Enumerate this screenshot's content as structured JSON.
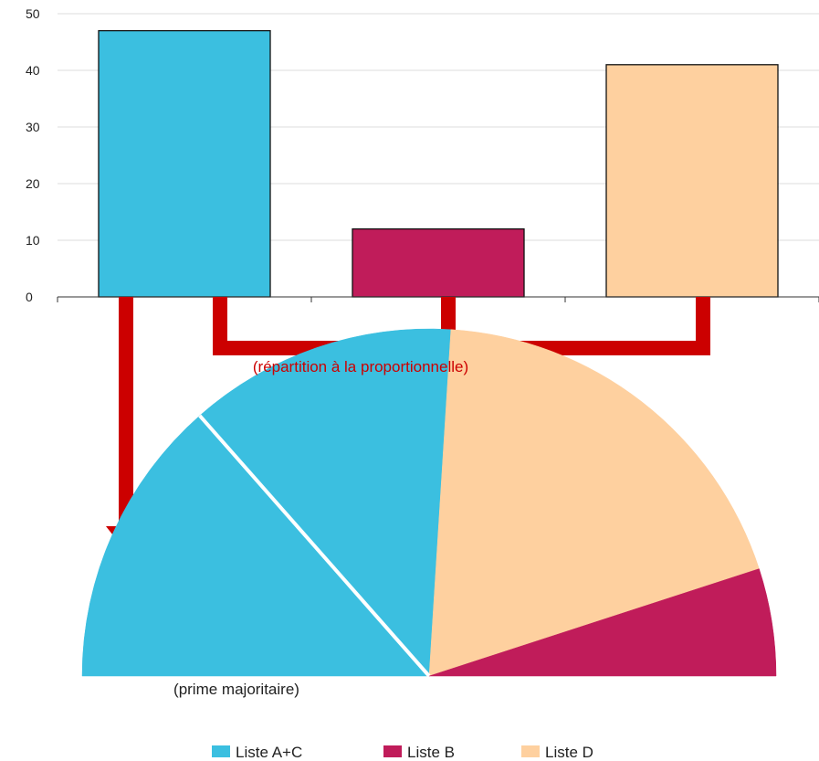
{
  "chart_data": {
    "type": "bar",
    "categories": [
      "Liste A+C",
      "Liste B",
      "Liste D"
    ],
    "values": [
      47,
      12,
      41
    ],
    "ylim": [
      0,
      50
    ],
    "yticks": [
      0,
      10,
      20,
      30,
      40,
      50
    ],
    "grid": true,
    "colors": [
      "#3bbfe0",
      "#c01c5a",
      "#fed09f"
    ],
    "seat_chart": {
      "type": "pie",
      "shape": "half-donut",
      "slices": [
        {
          "label": "Liste A+C",
          "value": 27,
          "color": "#3bbfe0",
          "note": "(prime majoritaire)"
        },
        {
          "label": "Liste A+C",
          "value": 25,
          "color": "#3bbfe0"
        },
        {
          "label": "Liste D",
          "value": 38,
          "color": "#fed09f"
        },
        {
          "label": "Liste B",
          "value": 10,
          "color": "#c01c5a"
        }
      ]
    },
    "annotations": {
      "proportional": "(répartition à la proportionnelle)",
      "bonus": "(prime majoritaire)"
    },
    "arrow_color": "#cc0000",
    "legend": {
      "placement": "bottom",
      "items": [
        {
          "label": "Liste A+C",
          "color": "#3bbfe0"
        },
        {
          "label": "Liste B",
          "color": "#c01c5a"
        },
        {
          "label": "Liste D",
          "color": "#fed09f"
        }
      ]
    }
  }
}
